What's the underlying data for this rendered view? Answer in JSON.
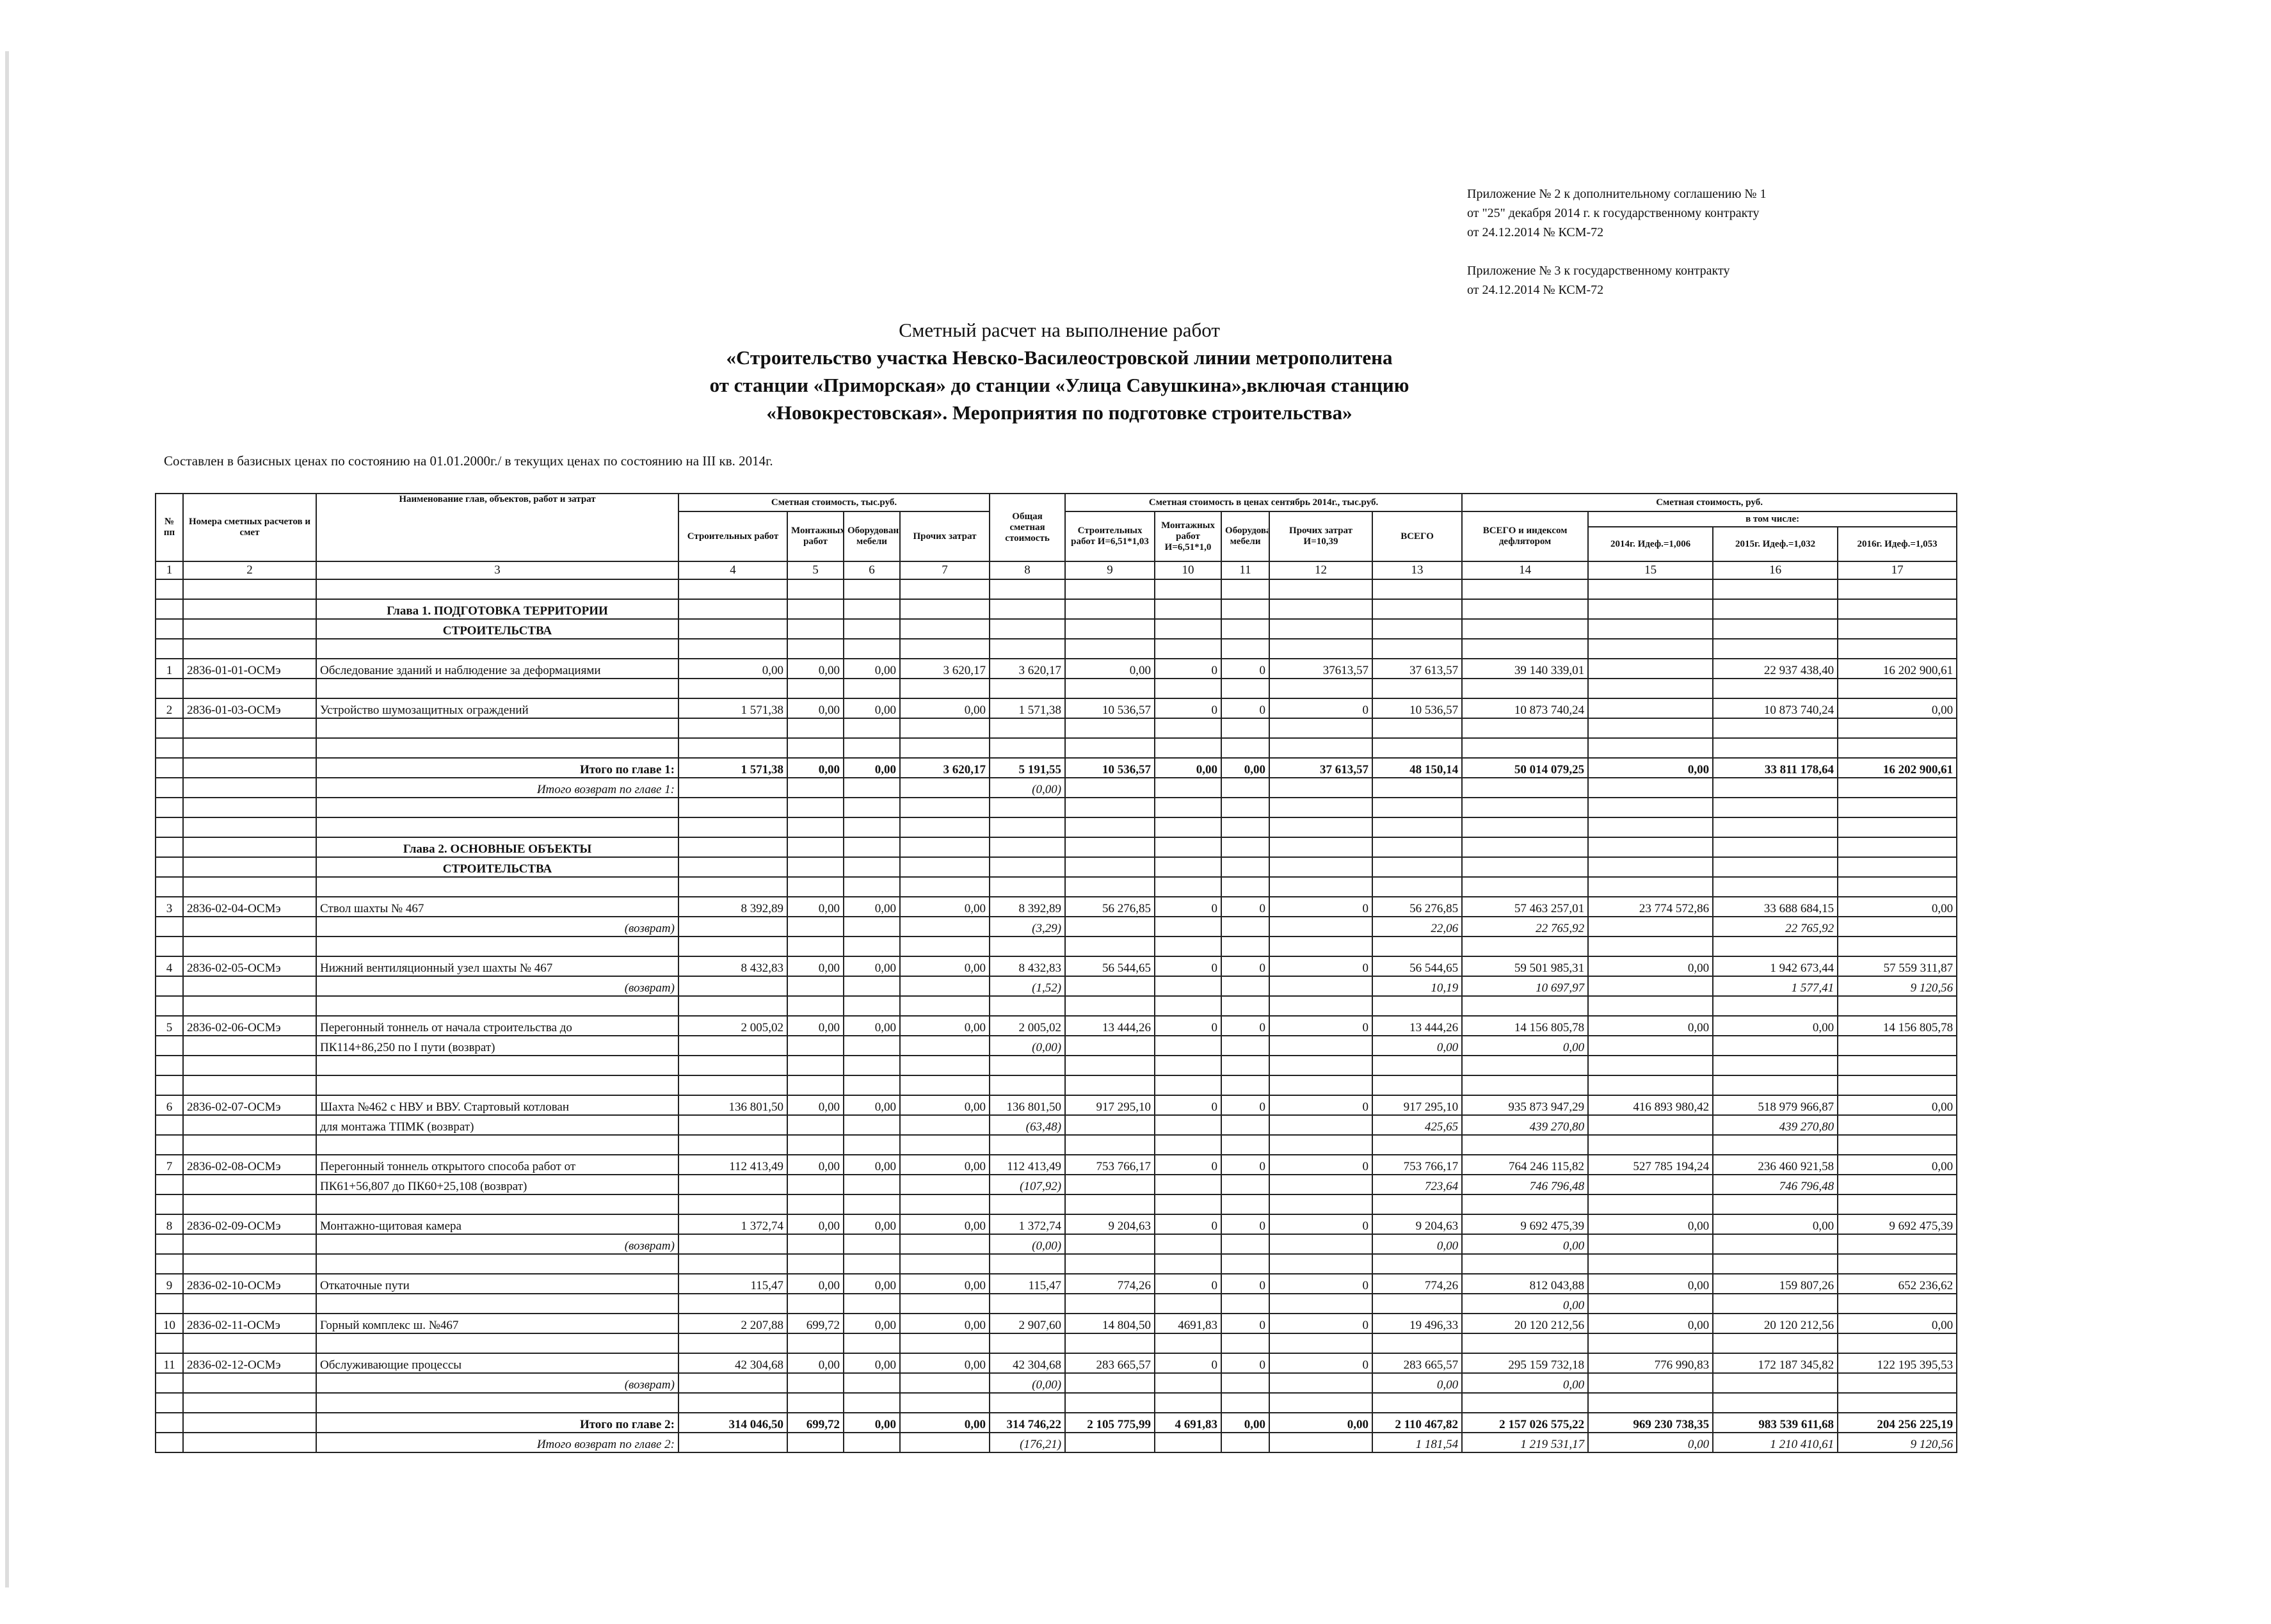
{
  "appendix": [
    "Приложение № 2 к дополнительному соглашению № 1",
    "от \"25\" декабря 2014 г. к государственному контракту",
    "от 24.12.2014 № КСМ-72",
    "Приложение № 3 к государственному контракту",
    "от 24.12.2014 № КСМ-72"
  ],
  "title": [
    "Сметный расчет на выполнение работ",
    "«Строительство участка Невско-Василеостровской линии метрополитена",
    "от станции «Приморская» до станции «Улица Савушкина»,включая станцию",
    "«Новокрестовская». Мероприятия по подготовке строительства»"
  ],
  "note": "Составлен в базисных ценах по состоянию на 01.01.2000г./ в текущих ценах по состоянию на III кв. 2014г.",
  "table": {
    "header": {
      "num": "№ пп",
      "codes": "Номера сметных расчетов и смет",
      "name": "Наименование глав, объектов, работ и затрат",
      "base_cost": "Сметная стоимость, тыс.руб.",
      "base_cols": [
        "Строительных работ",
        "Монтажных работ",
        "Оборудования, мебели",
        "Прочих затрат"
      ],
      "total_cost": "Общая сметная стоимость",
      "current_cost": "Сметная стоимость в ценах сентябрь 2014г., тыс.руб.",
      "current_cols": [
        "Строительных работ И=6,51*1,03",
        "Монтажных работ И=6,51*1,0",
        "Оборудования, мебели",
        "Прочих затрат И=10,39",
        "ВСЕГО"
      ],
      "rub_cost": "Сметная стоимость, руб.",
      "rub_total": "ВСЕГО и индексом дефлятором",
      "incl": "в том числе:",
      "years": [
        "2014г. Идеф.=1,006",
        "2015г. Идеф.=1,032",
        "2016г. Идеф.=1,053"
      ]
    },
    "col_numbers": [
      1,
      2,
      3,
      4,
      5,
      6,
      7,
      8,
      9,
      10,
      11,
      12,
      13,
      14,
      15,
      16,
      17
    ],
    "rows": [
      null,
      {
        "style": "chapter",
        "cells": [
          null,
          null,
          "Глава 1. ПОДГОТОВКА ТЕРРИТОРИИ",
          null,
          null,
          null,
          null,
          null,
          null,
          null,
          null,
          null,
          null,
          null,
          null,
          null,
          null
        ]
      },
      {
        "style": "chapter",
        "cells": [
          null,
          null,
          "СТРОИТЕЛЬСТВА",
          null,
          null,
          null,
          null,
          null,
          null,
          null,
          null,
          null,
          null,
          null,
          null,
          null,
          null
        ]
      },
      null,
      {
        "style": "item",
        "cells": [
          "1",
          "2836-01-01-ОСМэ",
          "Обследование зданий и наблюдение за деформациями",
          "0,00",
          "0,00",
          "0,00",
          "3 620,17",
          "3 620,17",
          "0,00",
          "0",
          "0",
          "37613,57",
          "37 613,57",
          "39 140 339,01",
          null,
          "22 937 438,40",
          "16 202 900,61"
        ]
      },
      null,
      {
        "style": "item",
        "cells": [
          "2",
          "2836-01-03-ОСМэ",
          "Устройство шумозащитных ограждений",
          "1 571,38",
          "0,00",
          "0,00",
          "0,00",
          "1 571,38",
          "10 536,57",
          "0",
          "0",
          "0",
          "10 536,57",
          "10 873 740,24",
          null,
          "10 873 740,24",
          "0,00"
        ]
      },
      null,
      null,
      {
        "style": "total",
        "cells": [
          null,
          null,
          "Итого по главе 1:",
          "1 571,38",
          "0,00",
          "0,00",
          "3 620,17",
          "5 191,55",
          "10 536,57",
          "0,00",
          "0,00",
          "37 613,57",
          "48 150,14",
          "50 014 079,25",
          "0,00",
          "33 811 178,64",
          "16 202 900,61"
        ]
      },
      {
        "style": "total-return",
        "cells": [
          null,
          null,
          "Итого возврат по главе 1:",
          null,
          null,
          null,
          null,
          "(0,00)",
          null,
          null,
          null,
          null,
          null,
          null,
          null,
          null,
          null
        ]
      },
      null,
      null,
      {
        "style": "chapter",
        "cells": [
          null,
          null,
          "Глава 2. ОСНОВНЫЕ ОБЪЕКТЫ",
          null,
          null,
          null,
          null,
          null,
          null,
          null,
          null,
          null,
          null,
          null,
          null,
          null,
          null
        ]
      },
      {
        "style": "chapter",
        "cells": [
          null,
          null,
          "СТРОИТЕЛЬСТВА",
          null,
          null,
          null,
          null,
          null,
          null,
          null,
          null,
          null,
          null,
          null,
          null,
          null,
          null
        ]
      },
      null,
      {
        "style": "item",
        "cells": [
          "3",
          "2836-02-04-ОСМэ",
          "Ствол шахты № 467",
          "8 392,89",
          "0,00",
          "0,00",
          "0,00",
          "8 392,89",
          "56 276,85",
          "0",
          "0",
          "0",
          "56 276,85",
          "57 463 257,01",
          "23 774 572,86",
          "33 688 684,15",
          "0,00"
        ]
      },
      {
        "style": "return",
        "cells": [
          null,
          null,
          "(возврат)",
          null,
          null,
          null,
          null,
          "(3,29)",
          null,
          null,
          null,
          null,
          "22,06",
          "22 765,92",
          null,
          "22 765,92",
          null
        ]
      },
      null,
      {
        "style": "item",
        "cells": [
          "4",
          "2836-02-05-ОСМэ",
          "Нижний вентиляционный узел шахты № 467",
          "8 432,83",
          "0,00",
          "0,00",
          "0,00",
          "8 432,83",
          "56 544,65",
          "0",
          "0",
          "0",
          "56 544,65",
          "59 501 985,31",
          "0,00",
          "1 942 673,44",
          "57 559 311,87"
        ]
      },
      {
        "style": "return",
        "cells": [
          null,
          null,
          "(возврат)",
          null,
          null,
          null,
          null,
          "(1,52)",
          null,
          null,
          null,
          null,
          "10,19",
          "10 697,97",
          null,
          "1 577,41",
          "9 120,56"
        ]
      },
      null,
      {
        "style": "item",
        "cells": [
          "5",
          "2836-02-06-ОСМэ",
          "Перегонный тоннель от начала строительства до",
          "2 005,02",
          "0,00",
          "0,00",
          "0,00",
          "2 005,02",
          "13 444,26",
          "0",
          "0",
          "0",
          "13 444,26",
          "14 156 805,78",
          "0,00",
          "0,00",
          "14 156 805,78"
        ]
      },
      {
        "style": "return-text",
        "cells": [
          null,
          null,
          "ПК114+86,250 по I пути (возврат)",
          null,
          null,
          null,
          null,
          "(0,00)",
          null,
          null,
          null,
          null,
          "0,00",
          "0,00",
          null,
          null,
          null
        ]
      },
      null,
      null,
      {
        "style": "item",
        "cells": [
          "6",
          "2836-02-07-ОСМэ",
          "Шахта №462 с НВУ и ВВУ. Стартовый котлован",
          "136 801,50",
          "0,00",
          "0,00",
          "0,00",
          "136 801,50",
          "917 295,10",
          "0",
          "0",
          "0",
          "917 295,10",
          "935 873 947,29",
          "416 893 980,42",
          "518 979 966,87",
          "0,00"
        ]
      },
      {
        "style": "return-text",
        "cells": [
          null,
          null,
          "для монтажа ТПМК (возврат)",
          null,
          null,
          null,
          null,
          "(63,48)",
          null,
          null,
          null,
          null,
          "425,65",
          "439 270,80",
          null,
          "439 270,80",
          null
        ]
      },
      null,
      {
        "style": "item",
        "cells": [
          "7",
          "2836-02-08-ОСМэ",
          "Перегонный тоннель открытого способа работ от",
          "112 413,49",
          "0,00",
          "0,00",
          "0,00",
          "112 413,49",
          "753 766,17",
          "0",
          "0",
          "0",
          "753 766,17",
          "764 246 115,82",
          "527 785 194,24",
          "236 460 921,58",
          "0,00"
        ]
      },
      {
        "style": "return-text",
        "cells": [
          null,
          null,
          "ПК61+56,807 до ПК60+25,108 (возврат)",
          null,
          null,
          null,
          null,
          "(107,92)",
          null,
          null,
          null,
          null,
          "723,64",
          "746 796,48",
          null,
          "746 796,48",
          null
        ]
      },
      null,
      {
        "style": "item",
        "cells": [
          "8",
          "2836-02-09-ОСМэ",
          "Монтажно-щитовая камера",
          "1 372,74",
          "0,00",
          "0,00",
          "0,00",
          "1 372,74",
          "9 204,63",
          "0",
          "0",
          "0",
          "9 204,63",
          "9 692 475,39",
          "0,00",
          "0,00",
          "9 692 475,39"
        ]
      },
      {
        "style": "return",
        "cells": [
          null,
          null,
          "(возврат)",
          null,
          null,
          null,
          null,
          "(0,00)",
          null,
          null,
          null,
          null,
          "0,00",
          "0,00",
          null,
          null,
          null
        ]
      },
      null,
      {
        "style": "item",
        "cells": [
          "9",
          "2836-02-10-ОСМэ",
          "Откаточные пути",
          "115,47",
          "0,00",
          "0,00",
          "0,00",
          "115,47",
          "774,26",
          "0",
          "0",
          "0",
          "774,26",
          "812 043,88",
          "0,00",
          "159 807,26",
          "652 236,62"
        ]
      },
      {
        "style": "return",
        "cells": [
          null,
          null,
          null,
          null,
          null,
          null,
          null,
          null,
          null,
          null,
          null,
          null,
          null,
          "0,00",
          null,
          null,
          null
        ]
      },
      {
        "style": "item",
        "cells": [
          "10",
          "2836-02-11-ОСМэ",
          "Горный комплекс ш. №467",
          "2 207,88",
          "699,72",
          "0,00",
          "0,00",
          "2 907,60",
          "14 804,50",
          "4691,83",
          "0",
          "0",
          "19 496,33",
          "20 120 212,56",
          "0,00",
          "20 120 212,56",
          "0,00"
        ]
      },
      null,
      {
        "style": "item",
        "cells": [
          "11",
          "2836-02-12-ОСМэ",
          "Обслуживающие процессы",
          "42 304,68",
          "0,00",
          "0,00",
          "0,00",
          "42 304,68",
          "283 665,57",
          "0",
          "0",
          "0",
          "283 665,57",
          "295 159 732,18",
          "776 990,83",
          "172 187 345,82",
          "122 195 395,53"
        ]
      },
      {
        "style": "return",
        "cells": [
          null,
          null,
          "(возврат)",
          null,
          null,
          null,
          null,
          "(0,00)",
          null,
          null,
          null,
          null,
          "0,00",
          "0,00",
          null,
          null,
          null
        ]
      },
      null,
      {
        "style": "total",
        "cells": [
          null,
          null,
          "Итого по главе 2:",
          "314 046,50",
          "699,72",
          "0,00",
          "0,00",
          "314 746,22",
          "2 105 775,99",
          "4 691,83",
          "0,00",
          "0,00",
          "2 110 467,82",
          "2 157 026 575,22",
          "969 230 738,35",
          "983 539 611,68",
          "204 256 225,19"
        ]
      },
      {
        "style": "total-return",
        "cells": [
          null,
          null,
          "Итого возврат по главе 2:",
          null,
          null,
          null,
          null,
          "(176,21)",
          null,
          null,
          null,
          null,
          "1 181,54",
          "1 219 531,17",
          "0,00",
          "1 210 410,61",
          "9 120,56"
        ]
      }
    ]
  }
}
